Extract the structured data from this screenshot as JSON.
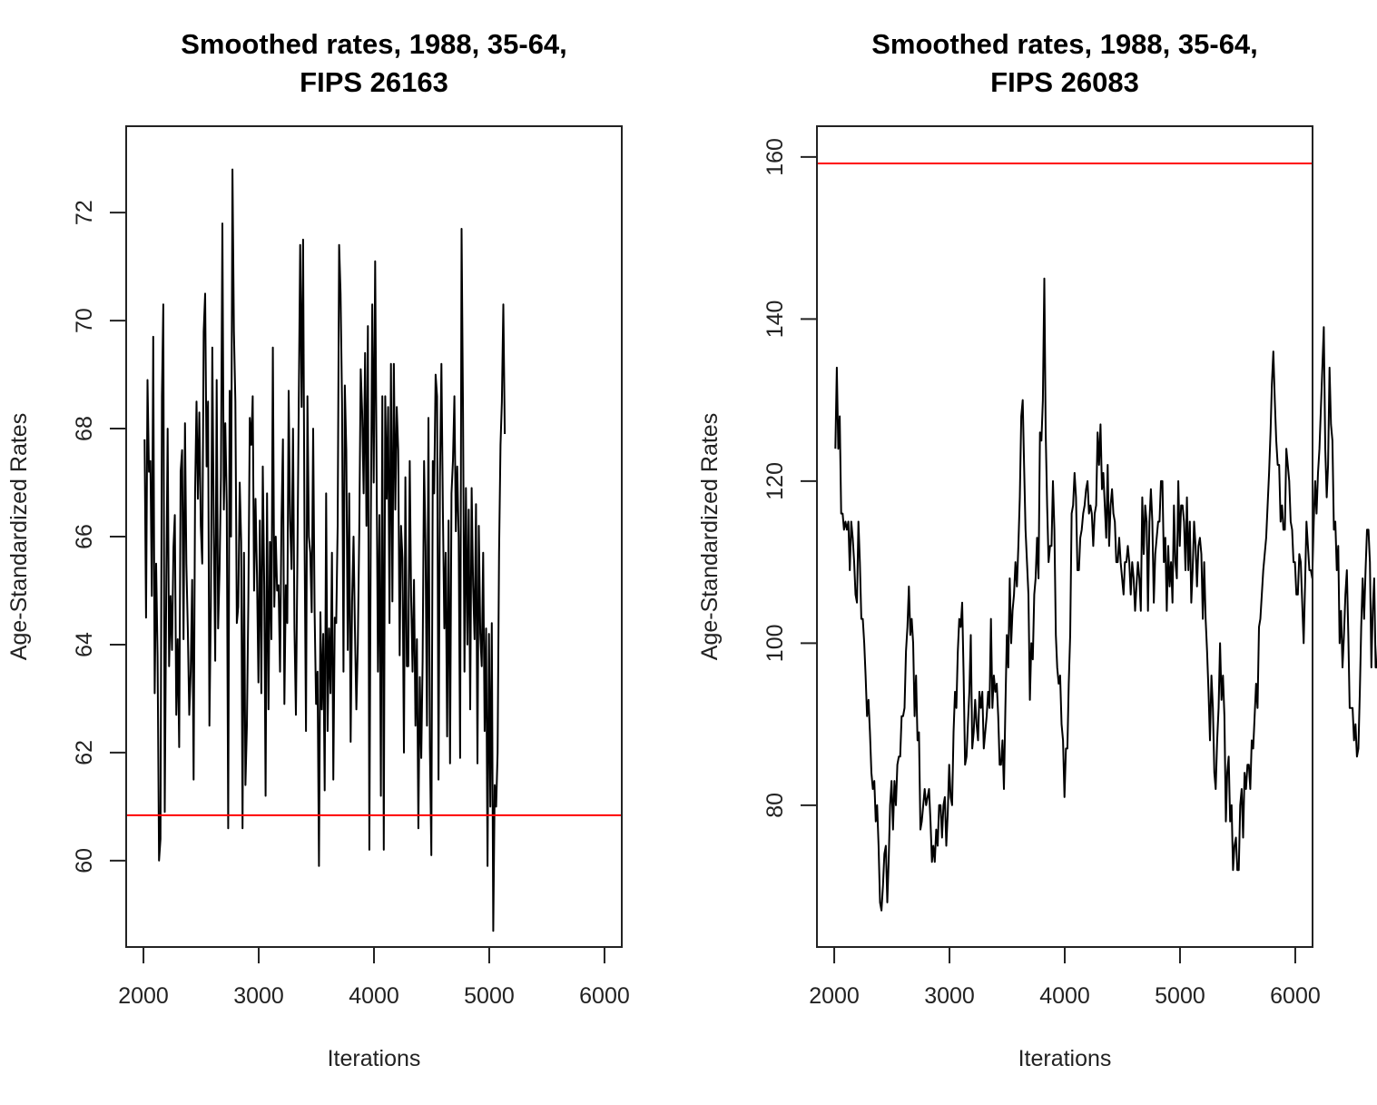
{
  "chart_data": [
    {
      "type": "line",
      "title": "Smoothed rates, 1988, 35-64,\nFIPS 26163",
      "title_lines": [
        "Smoothed rates, 1988, 35-64,",
        "FIPS 26163"
      ],
      "xlabel": "Iterations",
      "ylabel": "Age-Standardized Rates",
      "xlim": [
        1850,
        6150
      ],
      "ylim": [
        58.4,
        73.6
      ],
      "xticks": [
        2000,
        3000,
        4000,
        5000,
        6000
      ],
      "xtick_labels": [
        "2000",
        "3000",
        "4000",
        "5000",
        "6000"
      ],
      "yticks": [
        60,
        62,
        64,
        66,
        68,
        70,
        72
      ],
      "ytick_labels": [
        "60",
        "62",
        "64",
        "66",
        "68",
        "70",
        "72"
      ],
      "grid": false,
      "reference_line": {
        "y": 60.84,
        "color": "#ff0000"
      },
      "series": [
        {
          "name": "trace",
          "color": "#000000",
          "x_start": 2010,
          "x_step": 12.5,
          "values": [
            67.8,
            64.5,
            68.9,
            67.2,
            67.4,
            64.9,
            69.7,
            63.1,
            65.5,
            63.8,
            60.0,
            60.4,
            68.6,
            70.3,
            60.9,
            64.9,
            68.0,
            63.6,
            64.9,
            63.9,
            65.8,
            66.4,
            62.7,
            64.1,
            62.1,
            67.2,
            67.6,
            64.1,
            68.1,
            65.5,
            64.3,
            62.7,
            63.5,
            65.2,
            61.5,
            66.8,
            68.5,
            66.7,
            68.3,
            66.2,
            65.5,
            69.8,
            70.5,
            67.3,
            68.5,
            62.5,
            64.7,
            69.5,
            66.1,
            63.7,
            68.9,
            64.3,
            65.4,
            67.1,
            71.8,
            66.5,
            68.1,
            66.6,
            60.6,
            68.7,
            66.0,
            72.8,
            69.8,
            68.5,
            64.4,
            64.7,
            67.0,
            65.9,
            60.6,
            65.7,
            61.4,
            62.5,
            64.8,
            68.2,
            67.7,
            68.6,
            65.0,
            66.7,
            65.3,
            63.3,
            66.3,
            63.1,
            67.3,
            65.1,
            61.2,
            66.8,
            62.8,
            65.9,
            64.1,
            69.5,
            64.7,
            66.0,
            65.0,
            65.1,
            63.5,
            66.3,
            67.8,
            62.9,
            65.1,
            64.4,
            68.7,
            66.3,
            65.4,
            68.0,
            64.3,
            62.7,
            65.5,
            68.4,
            71.4,
            68.4,
            71.5,
            66.0,
            62.4,
            68.6,
            66.0,
            65.7,
            64.6,
            68.0,
            64.6,
            62.9,
            63.5,
            59.9,
            64.6,
            62.8,
            64.2,
            61.3,
            66.8,
            62.4,
            64.3,
            63.1,
            65.7,
            61.5,
            64.5,
            64.4,
            66.2,
            71.4,
            70.5,
            68.5,
            63.5,
            68.8,
            67.6,
            63.9,
            66.8,
            62.2,
            64.8,
            66.0,
            64.3,
            62.8,
            64.0,
            66.1,
            69.1,
            68.3,
            66.8,
            69.4,
            66.2,
            69.9,
            60.2,
            66.2,
            70.3,
            67.0,
            71.1,
            67.2,
            63.5,
            66.4,
            61.2,
            68.6,
            60.2,
            68.6,
            66.7,
            68.4,
            64.4,
            69.2,
            64.8,
            69.2,
            66.5,
            68.4,
            67.6,
            63.8,
            66.2,
            65.6,
            62.0,
            67.1,
            63.6,
            63.6,
            67.4,
            64.9,
            63.5,
            65.2,
            62.5,
            64.1,
            60.6,
            63.4,
            61.9,
            63.7,
            67.4,
            65.8,
            62.5,
            68.2,
            62.1,
            60.1,
            67.4,
            66.8,
            69.0,
            68.6,
            61.5,
            67.1,
            69.2,
            66.5,
            64.3,
            65.7,
            62.3,
            66.3,
            61.8,
            66.8,
            67.4,
            68.6,
            66.1,
            67.3,
            66.0,
            61.9,
            71.7,
            68.3,
            63.5,
            66.9,
            64.0,
            66.5,
            62.8,
            66.9,
            65.1,
            64.1,
            66.6,
            61.8,
            66.2,
            64.2,
            63.6,
            65.7,
            62.4,
            64.3,
            59.9,
            64.2,
            61.0,
            64.4,
            58.7,
            61.4,
            61.0,
            62.0,
            65.7,
            67.7,
            68.5,
            70.3,
            67.9
          ]
        }
      ]
    },
    {
      "type": "line",
      "title": "Smoothed rates, 1988, 35-64,\nFIPS 26083",
      "title_lines": [
        "Smoothed rates, 1988, 35-64,",
        "FIPS 26083"
      ],
      "xlabel": "Iterations",
      "ylabel": "Age-Standardized Rates",
      "xlim": [
        1850,
        6150
      ],
      "ylim": [
        62.5,
        163.8
      ],
      "xticks": [
        2000,
        3000,
        4000,
        5000,
        6000
      ],
      "xtick_labels": [
        "2000",
        "3000",
        "4000",
        "5000",
        "6000"
      ],
      "yticks": [
        80,
        100,
        120,
        140,
        160
      ],
      "ytick_labels": [
        "80",
        "100",
        "120",
        "140",
        "160"
      ],
      "grid": false,
      "reference_line": {
        "y": 159.2,
        "color": "#ff0000"
      },
      "series": [
        {
          "name": "trace",
          "color": "#000000",
          "x_start": 2010,
          "x_step": 12.5,
          "values": [
            124,
            134,
            124,
            128,
            116,
            116,
            114,
            115,
            114,
            115,
            109,
            115,
            113,
            110,
            106,
            105,
            115,
            110,
            103,
            103,
            100,
            96,
            91,
            93,
            89,
            84,
            82,
            83,
            78,
            80,
            75,
            68,
            67,
            70,
            74,
            75,
            68,
            73,
            80,
            83,
            77,
            83,
            80,
            85,
            86,
            86,
            91,
            91,
            92,
            99,
            102,
            107,
            101,
            103,
            100,
            91,
            96,
            88,
            89,
            77,
            78,
            80,
            82,
            80,
            81,
            82,
            78,
            73,
            75,
            73,
            77,
            75,
            80,
            80,
            76,
            80,
            81,
            75,
            79,
            85,
            81,
            80,
            89,
            94,
            92,
            99,
            103,
            102,
            105,
            96,
            85,
            86,
            90,
            94,
            101,
            87,
            89,
            93,
            90,
            88,
            94,
            92,
            94,
            87,
            89,
            91,
            94,
            92,
            103,
            92,
            96,
            94,
            95,
            91,
            85,
            85,
            88,
            82,
            92,
            101,
            97,
            108,
            100,
            104,
            106,
            110,
            107,
            112,
            118,
            128,
            130,
            122,
            114,
            110,
            106,
            93,
            100,
            98,
            106,
            108,
            113,
            108,
            126,
            125,
            130,
            145,
            126,
            117,
            110,
            112,
            112,
            120,
            114,
            101,
            97,
            95,
            96,
            90,
            88,
            81,
            87,
            87,
            95,
            101,
            116,
            117,
            121,
            118,
            109,
            109,
            113,
            114,
            116,
            117,
            119,
            120,
            116,
            117,
            116,
            112,
            116,
            117,
            126,
            122,
            127,
            119,
            121,
            117,
            113,
            122,
            112,
            117,
            119,
            116,
            115,
            110,
            110,
            113,
            110,
            108,
            106,
            110,
            110,
            112,
            110,
            106,
            110,
            108,
            104,
            107,
            110,
            108,
            104,
            118,
            111,
            117,
            115,
            104,
            115,
            119,
            115,
            105,
            111,
            113,
            115,
            115,
            120,
            120,
            110,
            113,
            104,
            112,
            107,
            110,
            105,
            117,
            110,
            108,
            120,
            112,
            117,
            117,
            115,
            109,
            118,
            109,
            115,
            105,
            109,
            115,
            112,
            107,
            112,
            113,
            111,
            103,
            110,
            103,
            99,
            94,
            88,
            96,
            92,
            84,
            82,
            88,
            92,
            100,
            93,
            96,
            91,
            78,
            84,
            86,
            78,
            80,
            72,
            75,
            76,
            72,
            72,
            80,
            82,
            76,
            84,
            82,
            85,
            85,
            82,
            88,
            87,
            91,
            95,
            92,
            102,
            103,
            106,
            109,
            111,
            113,
            117,
            121,
            126,
            132,
            136,
            130,
            125,
            122,
            122,
            115,
            117,
            114,
            114,
            124,
            122,
            120,
            115,
            114,
            110,
            110,
            106,
            106,
            111,
            110,
            105,
            100,
            107,
            115,
            112,
            109,
            109,
            108,
            115,
            120,
            116,
            121,
            124,
            129,
            134,
            139,
            124,
            118,
            122,
            134,
            127,
            125,
            114,
            115,
            109,
            112,
            100,
            104,
            97,
            101,
            106,
            109,
            101,
            92,
            92,
            92,
            88,
            90,
            86,
            87,
            94,
            102,
            108,
            103,
            109,
            114,
            114,
            110,
            97,
            104,
            108,
            97,
            97,
            102
          ]
        }
      ]
    }
  ]
}
